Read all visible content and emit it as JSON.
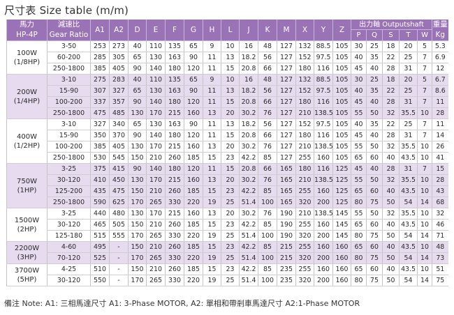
{
  "title": "尺寸表 Size table (m/m)",
  "header": {
    "motor": [
      "馬力",
      "HP-4P"
    ],
    "ratio": [
      "減速比",
      "Gear Ratio"
    ],
    "dims": [
      "A1",
      "A2",
      "D",
      "E",
      "F",
      "G",
      "H",
      "L",
      "J",
      "K",
      "M",
      "X",
      "Y",
      "Z"
    ],
    "shaft": "出力軸 Outputshaft",
    "shaft_cols": [
      "P",
      "Q",
      "S",
      "T",
      "W"
    ],
    "weight": [
      "重量",
      "Kg"
    ]
  },
  "groups": [
    {
      "motor": [
        "100W",
        "(1/8HP)"
      ],
      "shade": false,
      "rows": [
        [
          "3-50",
          "253",
          "273",
          "40",
          "110",
          "135",
          "65",
          "9",
          "10",
          "16",
          "48",
          "127",
          "132",
          "88.5",
          "105",
          "30",
          "25",
          "18",
          "20",
          "5",
          "5.3"
        ],
        [
          "60-200",
          "285",
          "305",
          "65",
          "130",
          "163",
          "90",
          "11",
          "13",
          "18.2",
          "56",
          "127",
          "152",
          "97.5",
          "105",
          "40",
          "35",
          "22",
          "25",
          "7",
          "6.9"
        ],
        [
          "250-1800",
          "385",
          "405",
          "90",
          "140",
          "180",
          "120",
          "11",
          "15",
          "20.8",
          "66",
          "127",
          "180",
          "116",
          "105",
          "45",
          "40",
          "28",
          "31",
          "7",
          "12"
        ]
      ]
    },
    {
      "motor": [
        "200W",
        "(1/4HP)"
      ],
      "shade": true,
      "rows": [
        [
          "3-10",
          "275",
          "283",
          "40",
          "110",
          "135",
          "65",
          "9",
          "10",
          "16",
          "48",
          "127",
          "132",
          "88.5",
          "105",
          "30",
          "25",
          "18",
          "20",
          "5",
          "6.7"
        ],
        [
          "15-90",
          "307",
          "327",
          "65",
          "130",
          "163",
          "90",
          "11",
          "13",
          "18.2",
          "56",
          "127",
          "152",
          "97.5",
          "105",
          "40",
          "35",
          "22",
          "25",
          "7",
          "8.6"
        ],
        [
          "100-200",
          "337",
          "357",
          "90",
          "140",
          "180",
          "120",
          "11",
          "15",
          "20.8",
          "66",
          "127",
          "180",
          "116",
          "105",
          "45",
          "40",
          "28",
          "31",
          "7",
          "11"
        ],
        [
          "250-1800",
          "475",
          "485",
          "130",
          "170",
          "215",
          "160",
          "13",
          "20",
          "30.2",
          "76",
          "127",
          "210",
          "138.5",
          "105",
          "55",
          "50",
          "32",
          "35.5",
          "10",
          "28"
        ]
      ]
    },
    {
      "motor": [
        "400W",
        "(1/2HP)"
      ],
      "shade": false,
      "rows": [
        [
          "3-10",
          "327",
          "340",
          "65",
          "130",
          "163",
          "90",
          "11",
          "13",
          "18.2",
          "56",
          "127",
          "152",
          "97.5",
          "105",
          "40",
          "35",
          "22",
          "25",
          "7",
          "11"
        ],
        [
          "15-90",
          "350",
          "370",
          "90",
          "140",
          "180",
          "120",
          "11",
          "15",
          "20.8",
          "66",
          "127",
          "180",
          "116",
          "105",
          "45",
          "40",
          "28",
          "31",
          "7",
          "14"
        ],
        [
          "100-200",
          "385",
          "405",
          "130",
          "170",
          "215",
          "160",
          "13",
          "20",
          "30.2",
          "76",
          "127",
          "210",
          "138.5",
          "105",
          "55",
          "50",
          "32",
          "35.5",
          "10",
          "26"
        ],
        [
          "250-1800",
          "530",
          "545",
          "150",
          "210",
          "260",
          "185",
          "15",
          "23",
          "42.2",
          "85",
          "127",
          "255",
          "160",
          "105",
          "65",
          "60",
          "40",
          "43.5",
          "10",
          "41"
        ]
      ]
    },
    {
      "motor": [
        "750W",
        "(1HP)"
      ],
      "shade": true,
      "rows": [
        [
          "3-25",
          "375",
          "415",
          "90",
          "140",
          "180",
          "120",
          "11",
          "15",
          "20.8",
          "66",
          "165",
          "180",
          "116",
          "125",
          "45",
          "40",
          "28",
          "31",
          "7",
          "15"
        ],
        [
          "30-120",
          "410",
          "450",
          "130",
          "170",
          "215",
          "160",
          "13",
          "20",
          "30.2",
          "76",
          "165",
          "210",
          "138.5",
          "125",
          "55",
          "50",
          "32",
          "35.5",
          "10",
          "28"
        ],
        [
          "125-200",
          "435",
          "475",
          "150",
          "210",
          "260",
          "185",
          "15",
          "23",
          "42.2",
          "85",
          "165",
          "255",
          "160",
          "125",
          "65",
          "60",
          "40",
          "43.5",
          "10",
          "43"
        ],
        [
          "250-1800",
          "590",
          "625",
          "170",
          "265",
          "330",
          "220",
          "19",
          "25",
          "51.4",
          "100",
          "165",
          "320",
          "200",
          "125",
          "80",
          "75",
          "50",
          "54",
          "14",
          "68"
        ]
      ]
    },
    {
      "motor": [
        "1500W",
        "(2HP)"
      ],
      "shade": false,
      "rows": [
        [
          "3-25",
          "440",
          "480",
          "130",
          "170",
          "215",
          "160",
          "13",
          "20",
          "30.2",
          "76",
          "190",
          "210",
          "138.5",
          "145",
          "55",
          "50",
          "32",
          "35.5",
          "10",
          "32"
        ],
        [
          "30-120",
          "465",
          "505",
          "150",
          "210",
          "260",
          "185",
          "15",
          "23",
          "42.2",
          "85",
          "190",
          "255",
          "160",
          "145",
          "65",
          "60",
          "40",
          "43.5",
          "10",
          "46"
        ],
        [
          "125-180",
          "515",
          "555",
          "170",
          "265",
          "330",
          "220",
          "19",
          "25",
          "51.4",
          "100",
          "190",
          "320",
          "200",
          "145",
          "80",
          "75",
          "50",
          "54",
          "14",
          "71"
        ]
      ]
    },
    {
      "motor": [
        "2200W",
        "(3HP)"
      ],
      "shade": true,
      "rows": [
        [
          "4-60",
          "495",
          "-",
          "150",
          "210",
          "260",
          "185",
          "15",
          "23",
          "42.2",
          "85",
          "215",
          "255",
          "160",
          "160",
          "65",
          "60",
          "40",
          "43.5",
          "10",
          "48"
        ],
        [
          "70-120",
          "525",
          "-",
          "170",
          "265",
          "330",
          "220",
          "19",
          "25",
          "51.4",
          "100",
          "215",
          "320",
          "200",
          "160",
          "80",
          "75",
          "50",
          "54",
          "14",
          "73"
        ]
      ]
    },
    {
      "motor": [
        "3700W",
        "(5HP)"
      ],
      "shade": false,
      "rows": [
        [
          "4-25",
          "510",
          "-",
          "150",
          "210",
          "260",
          "185",
          "15",
          "23",
          "42.2",
          "85",
          "235",
          "255",
          "160",
          "160",
          "65",
          "60",
          "40",
          "43.5",
          "10",
          "51"
        ],
        [
          "30-120",
          "550",
          "-",
          "170",
          "265",
          "330",
          "220",
          "19",
          "25",
          "51.4",
          "100",
          "235",
          "320",
          "200",
          "160",
          "80",
          "75",
          "50",
          "54",
          "14",
          "75"
        ]
      ]
    }
  ],
  "note": "備注 Note:  A1: 三相馬達尺寸    A1: 3-Phase MOTOR,  A2: 單相和帶剎車馬達尺寸    A2:1-Phase MOTOR"
}
